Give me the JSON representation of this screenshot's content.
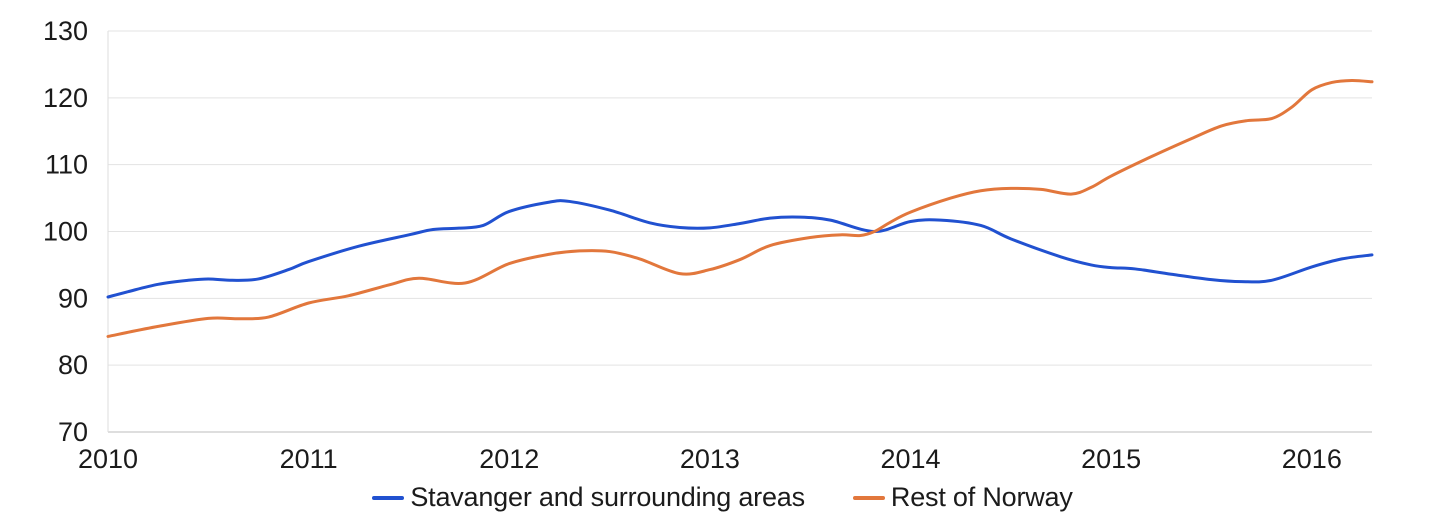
{
  "chart_data": {
    "type": "line",
    "title": "",
    "xlabel": "",
    "ylabel": "",
    "ylim": [
      70,
      130
    ],
    "ytick_step": 10,
    "yticks": [
      70,
      80,
      90,
      100,
      110,
      120,
      130
    ],
    "xlim": [
      2010,
      2016.3
    ],
    "xticks": [
      2010,
      2011,
      2012,
      2013,
      2014,
      2015,
      2016
    ],
    "grid": "horizontal-only",
    "legend_position": "bottom-center",
    "background_color": "#ffffff",
    "gridline_color": "#e3e3e3",
    "axis_line_color": "#bdbdbd",
    "tick_label_color": "#1b1b1b",
    "series": [
      {
        "name": "Stavanger and surrounding areas",
        "color": "#2151D0",
        "points": [
          [
            2010.0,
            90.2
          ],
          [
            2010.1,
            91.0
          ],
          [
            2010.25,
            92.1
          ],
          [
            2010.4,
            92.7
          ],
          [
            2010.5,
            92.9
          ],
          [
            2010.62,
            92.7
          ],
          [
            2010.75,
            92.9
          ],
          [
            2010.9,
            94.3
          ],
          [
            2011.0,
            95.5
          ],
          [
            2011.25,
            97.8
          ],
          [
            2011.5,
            99.5
          ],
          [
            2011.62,
            100.3
          ],
          [
            2011.75,
            100.5
          ],
          [
            2011.87,
            100.9
          ],
          [
            2012.0,
            103.0
          ],
          [
            2012.2,
            104.4
          ],
          [
            2012.3,
            104.5
          ],
          [
            2012.5,
            103.2
          ],
          [
            2012.7,
            101.3
          ],
          [
            2012.85,
            100.6
          ],
          [
            2013.0,
            100.55
          ],
          [
            2013.15,
            101.2
          ],
          [
            2013.3,
            102.0
          ],
          [
            2013.45,
            102.15
          ],
          [
            2013.6,
            101.7
          ],
          [
            2013.82,
            100.0
          ],
          [
            2014.0,
            101.5
          ],
          [
            2014.15,
            101.7
          ],
          [
            2014.35,
            100.9
          ],
          [
            2014.5,
            98.9
          ],
          [
            2014.75,
            96.2
          ],
          [
            2014.9,
            95.0
          ],
          [
            2015.0,
            94.6
          ],
          [
            2015.12,
            94.4
          ],
          [
            2015.3,
            93.6
          ],
          [
            2015.5,
            92.8
          ],
          [
            2015.65,
            92.5
          ],
          [
            2015.8,
            92.7
          ],
          [
            2016.0,
            94.7
          ],
          [
            2016.15,
            95.9
          ],
          [
            2016.3,
            96.5
          ]
        ]
      },
      {
        "name": "Rest of Norway",
        "color": "#E2773C",
        "points": [
          [
            2010.0,
            84.3
          ],
          [
            2010.25,
            85.8
          ],
          [
            2010.5,
            87.0
          ],
          [
            2010.65,
            86.95
          ],
          [
            2010.8,
            87.2
          ],
          [
            2011.0,
            89.3
          ],
          [
            2011.2,
            90.4
          ],
          [
            2011.4,
            92.0
          ],
          [
            2011.55,
            93.0
          ],
          [
            2011.78,
            92.3
          ],
          [
            2012.0,
            95.2
          ],
          [
            2012.2,
            96.6
          ],
          [
            2012.35,
            97.1
          ],
          [
            2012.5,
            97.0
          ],
          [
            2012.65,
            95.9
          ],
          [
            2012.85,
            93.7
          ],
          [
            2013.0,
            94.3
          ],
          [
            2013.15,
            95.8
          ],
          [
            2013.3,
            97.9
          ],
          [
            2013.5,
            99.1
          ],
          [
            2013.65,
            99.5
          ],
          [
            2013.75,
            99.4
          ],
          [
            2013.82,
            100.0
          ],
          [
            2013.9,
            101.4
          ],
          [
            2014.0,
            102.9
          ],
          [
            2014.2,
            105.0
          ],
          [
            2014.35,
            106.1
          ],
          [
            2014.5,
            106.45
          ],
          [
            2014.65,
            106.3
          ],
          [
            2014.8,
            105.6
          ],
          [
            2014.9,
            106.6
          ],
          [
            2015.0,
            108.3
          ],
          [
            2015.2,
            111.2
          ],
          [
            2015.4,
            113.9
          ],
          [
            2015.55,
            115.8
          ],
          [
            2015.68,
            116.6
          ],
          [
            2015.8,
            116.9
          ],
          [
            2015.9,
            118.6
          ],
          [
            2016.0,
            121.2
          ],
          [
            2016.1,
            122.3
          ],
          [
            2016.2,
            122.6
          ],
          [
            2016.3,
            122.4
          ]
        ]
      }
    ]
  }
}
